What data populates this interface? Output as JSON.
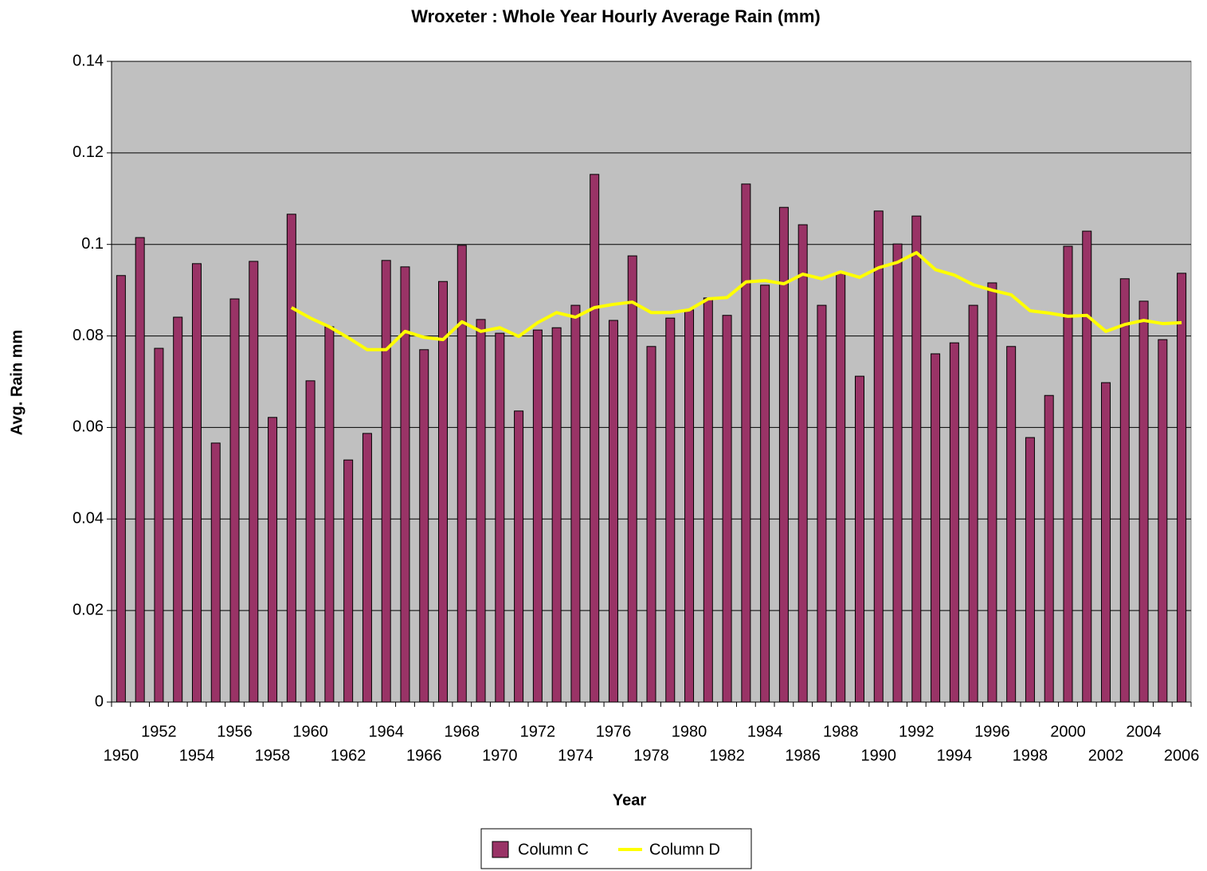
{
  "chart_data": {
    "type": "bar_line",
    "title": "Wroxeter : Whole Year Hourly Average Rain (mm)",
    "x_label": "Year",
    "y_label": "Avg. Rain mm",
    "categories": [
      "1950",
      null,
      "1952",
      null,
      "1954",
      null,
      "1956",
      null,
      "1958",
      null,
      "1960",
      null,
      "1962",
      null,
      "1964",
      null,
      "1966",
      null,
      "1968",
      null,
      "1970",
      null,
      "1972",
      null,
      "1974",
      null,
      "1976",
      null,
      "1978",
      null,
      "1980",
      null,
      "1982",
      null,
      "1984",
      null,
      "1986",
      null,
      "1988",
      null,
      "1990",
      null,
      "1992",
      null,
      "1994",
      null,
      "1996",
      null,
      "1998",
      null,
      "2000",
      null,
      "2002",
      null,
      "2004",
      null,
      "2006"
    ],
    "series": [
      {
        "name": "Column C",
        "type": "bar",
        "color": "#993366",
        "values": [
          0.0932,
          0.1015,
          0.0773,
          0.0841,
          0.0958,
          0.0566,
          0.0881,
          0.0963,
          0.0622,
          0.1066,
          0.0702,
          0.082,
          0.0529,
          0.0587,
          0.0965,
          0.0951,
          0.077,
          0.0919,
          0.0998,
          0.0836,
          0.0806,
          0.0636,
          0.0813,
          0.0818,
          0.0867,
          0.1153,
          0.0834,
          0.0975,
          0.0777,
          0.0839,
          0.0857,
          0.0883,
          0.0845,
          0.1132,
          0.0911,
          0.1081,
          0.1043,
          0.0867,
          0.0937,
          0.0712,
          0.1073,
          0.1001,
          0.1062,
          0.0761,
          0.0785,
          0.0867,
          0.0916,
          0.0777,
          0.0578,
          0.067,
          0.0996,
          0.1029,
          0.0698,
          0.0925,
          0.0876,
          0.0792,
          0.0937
        ]
      },
      {
        "name": "Column D",
        "type": "line",
        "color": "#ffff00",
        "values": [
          null,
          null,
          null,
          null,
          null,
          null,
          null,
          null,
          null,
          0.0862,
          0.0839,
          0.082,
          0.0796,
          0.077,
          0.077,
          0.081,
          0.0797,
          0.0792,
          0.0831,
          0.081,
          0.0818,
          0.0799,
          0.0829,
          0.0851,
          0.0841,
          0.0862,
          0.0869,
          0.0874,
          0.0851,
          0.0851,
          0.0857,
          0.0881,
          0.0884,
          0.0918,
          0.0921,
          0.0914,
          0.0935,
          0.0925,
          0.094,
          0.0928,
          0.0949,
          0.0961,
          0.0982,
          0.0945,
          0.0933,
          0.0912,
          0.09,
          0.089,
          0.0855,
          0.085,
          0.0843,
          0.0845,
          0.081,
          0.0825,
          0.0834,
          0.0827,
          0.0829
        ]
      }
    ],
    "ylim": [
      0,
      0.14
    ],
    "yticks": [
      0,
      0.02,
      0.04,
      0.06,
      0.08,
      0.1,
      0.12,
      0.14
    ],
    "grid": true,
    "plot_background": "#c0c0c0",
    "legend": "bottom"
  }
}
